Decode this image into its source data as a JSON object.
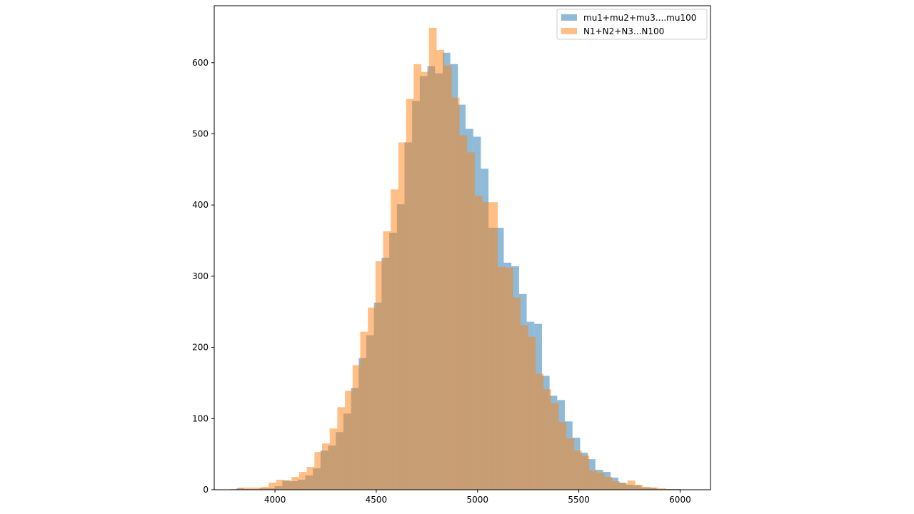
{
  "chart_data": {
    "type": "histogram",
    "title": "",
    "xlabel": "",
    "ylabel": "",
    "xlim": [
      3700,
      6150
    ],
    "ylim": [
      0,
      680
    ],
    "xticks": [
      4000,
      4500,
      5000,
      5500,
      6000
    ],
    "yticks": [
      0,
      100,
      200,
      300,
      400,
      500,
      600
    ],
    "grid": false,
    "legend_position": "top-right",
    "series": [
      {
        "name": "mu1+mu2+mu3....mu100",
        "color": "#1f77b4",
        "opacity": 0.5,
        "bin_width": 37.7,
        "bin_start": 3810,
        "counts": [
          2,
          1,
          1,
          2,
          2,
          5,
          13,
          12,
          14,
          20,
          30,
          55,
          62,
          81,
          107,
          143,
          185,
          217,
          263,
          326,
          361,
          401,
          488,
          546,
          581,
          595,
          585,
          614,
          598,
          541,
          507,
          496,
          451,
          368,
          368,
          319,
          314,
          275,
          236,
          233,
          160,
          132,
          126,
          96,
          73,
          52,
          43,
          28,
          25,
          17,
          10,
          7,
          6,
          3,
          3,
          1,
          1,
          1
        ]
      },
      {
        "name": "N1+N2+N3...N100",
        "color": "#ff7f0e",
        "opacity": 0.5,
        "bin_width": 37.7,
        "bin_start": 3780,
        "counts": [
          1,
          3,
          3,
          3,
          4,
          10,
          14,
          13,
          18,
          25,
          32,
          53,
          65,
          86,
          116,
          139,
          175,
          222,
          256,
          321,
          363,
          422,
          488,
          549,
          598,
          587,
          649,
          618,
          596,
          551,
          498,
          474,
          413,
          404,
          404,
          313,
          312,
          270,
          231,
          215,
          163,
          141,
          122,
          95,
          72,
          55,
          48,
          27,
          24,
          18,
          12,
          9,
          13,
          7,
          4,
          3,
          2,
          1,
          1
        ]
      }
    ]
  }
}
